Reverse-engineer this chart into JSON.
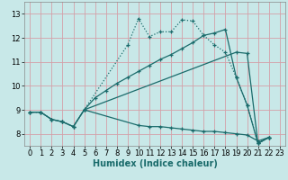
{
  "xlabel": "Humidex (Indice chaleur)",
  "xlim": [
    -0.5,
    23.5
  ],
  "ylim": [
    7.5,
    13.5
  ],
  "xticks": [
    0,
    1,
    2,
    3,
    4,
    5,
    6,
    7,
    8,
    9,
    10,
    11,
    12,
    13,
    14,
    15,
    16,
    17,
    18,
    19,
    20,
    21,
    22,
    23
  ],
  "yticks": [
    8,
    9,
    10,
    11,
    12,
    13
  ],
  "bg_color": "#c8e8e8",
  "line_color": "#1a6b6b",
  "grid_color": "#d4a0a8",
  "line1_x": [
    0,
    1,
    2,
    3,
    4,
    5,
    9,
    10,
    11,
    12,
    13,
    14,
    15,
    16,
    17,
    18,
    19,
    20,
    21,
    22
  ],
  "line1_y": [
    8.9,
    8.9,
    8.6,
    8.5,
    8.3,
    9.0,
    11.7,
    12.8,
    12.05,
    12.25,
    12.25,
    12.75,
    12.7,
    12.1,
    11.7,
    11.4,
    10.35,
    9.2,
    7.6,
    7.85
  ],
  "line2_x": [
    0,
    1,
    2,
    3,
    4,
    5,
    19,
    20,
    21,
    22
  ],
  "line2_y": [
    8.9,
    8.9,
    8.6,
    8.5,
    8.3,
    9.0,
    11.4,
    11.35,
    7.6,
    7.85
  ],
  "line3_x": [
    0,
    1,
    2,
    3,
    4,
    5,
    10,
    11,
    12,
    13,
    14,
    15,
    16,
    17,
    18,
    19,
    20,
    21,
    22
  ],
  "line3_y": [
    8.9,
    8.9,
    8.6,
    8.5,
    8.3,
    9.0,
    8.35,
    8.3,
    8.3,
    8.25,
    8.2,
    8.15,
    8.1,
    8.1,
    8.05,
    8.0,
    7.95,
    7.7,
    7.85
  ],
  "line4_x": [
    5,
    6,
    7,
    8,
    9,
    10,
    11,
    12,
    13,
    14,
    15,
    16,
    17,
    18,
    19,
    20,
    21,
    22
  ],
  "line4_y": [
    9.0,
    9.5,
    9.8,
    10.1,
    10.35,
    10.6,
    10.85,
    11.1,
    11.3,
    11.55,
    11.8,
    12.1,
    12.2,
    12.35,
    10.35,
    9.2,
    7.6,
    7.85
  ],
  "title_fontsize": 7.5,
  "label_fontsize": 7.0,
  "tick_fontsize": 6.0
}
